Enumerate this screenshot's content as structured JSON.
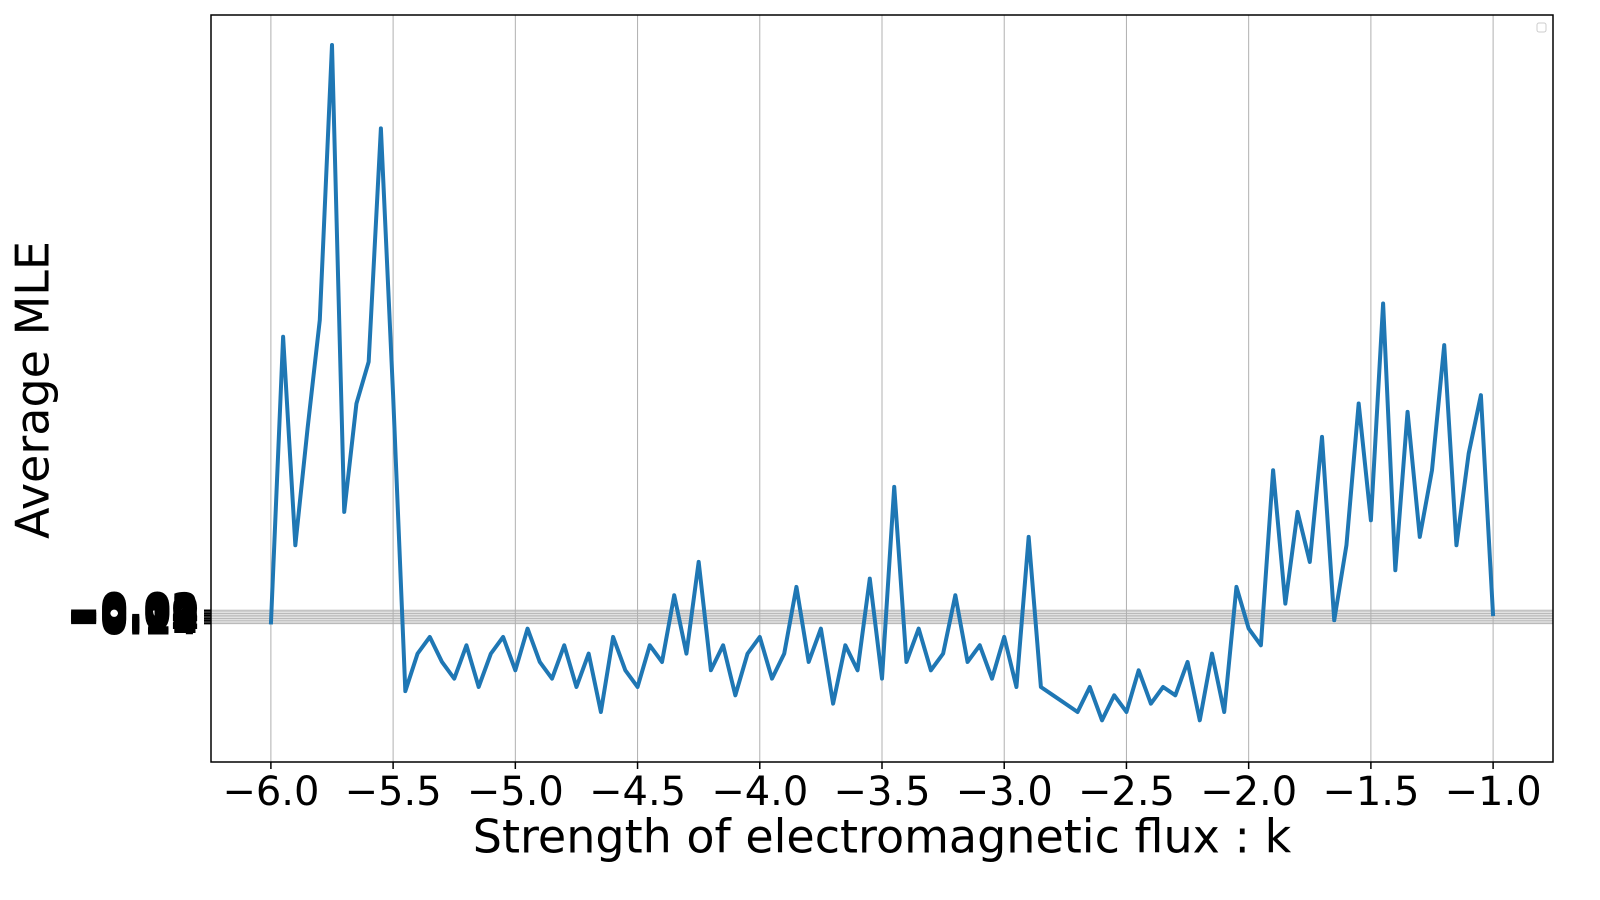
{
  "chart_data": {
    "type": "line",
    "xlabel": "Strength of electromagnetic flux : k",
    "ylabel": "Average MLE",
    "color": "#1f77b4",
    "grid": true,
    "xlim": [
      -6.245,
      -0.755
    ],
    "ylim": [
      -1.8,
      7.16
    ],
    "xticks": [
      {
        "value": -6.0,
        "label": "−6.0"
      },
      {
        "value": -5.5,
        "label": "−5.5"
      },
      {
        "value": -5.0,
        "label": "−5.0"
      },
      {
        "value": -4.5,
        "label": "−4.5"
      },
      {
        "value": -4.0,
        "label": "−4.0"
      },
      {
        "value": -3.5,
        "label": "−3.5"
      },
      {
        "value": -3.0,
        "label": "−3.0"
      },
      {
        "value": -2.5,
        "label": "−2.5"
      },
      {
        "value": -2.0,
        "label": "−2.0"
      },
      {
        "value": -1.5,
        "label": "−1.5"
      },
      {
        "value": -1.0,
        "label": "−1.0"
      }
    ],
    "yticks": [
      {
        "value": -0.14,
        "label": "−0.14"
      },
      {
        "value": -0.12,
        "label": "−0.12"
      },
      {
        "value": -0.1,
        "label": "−0.10"
      },
      {
        "value": -0.08,
        "label": "−0.08"
      },
      {
        "value": -0.06,
        "label": "−0.06"
      },
      {
        "value": -0.04,
        "label": "−0.04"
      },
      {
        "value": -0.02,
        "label": "−0.02"
      },
      {
        "value": 0,
        "label": "0.00"
      },
      {
        "value": 0.02,
        "label": "0.02"
      }
    ],
    "x": [
      -6.0,
      -5.95,
      -5.9,
      -5.85,
      -5.8,
      -5.75,
      -5.7,
      -5.65,
      -5.6,
      -5.55,
      -5.5,
      -5.45,
      -5.4,
      -5.35,
      -5.3,
      -5.25,
      -5.2,
      -5.15,
      -5.1,
      -5.05,
      -5.0,
      -4.95,
      -4.9,
      -4.85,
      -4.8,
      -4.75,
      -4.7,
      -4.65,
      -4.6,
      -4.55,
      -4.5,
      -4.45,
      -4.4,
      -4.35,
      -4.3,
      -4.25,
      -4.2,
      -4.15,
      -4.1,
      -4.05,
      -4.0,
      -3.95,
      -3.9,
      -3.85,
      -3.8,
      -3.75,
      -3.7,
      -3.65,
      -3.6,
      -3.55,
      -3.5,
      -3.45,
      -3.4,
      -3.35,
      -3.3,
      -3.25,
      -3.2,
      -3.15,
      -3.1,
      -3.05,
      -3.0,
      -2.95,
      -2.9,
      -2.85,
      -2.8,
      -2.75,
      -2.7,
      -2.65,
      -2.6,
      -2.55,
      -2.5,
      -2.45,
      -2.4,
      -2.35,
      -2.3,
      -2.25,
      -2.2,
      -2.15,
      -2.1,
      -2.05,
      -2.0,
      -1.95,
      -1.9,
      -1.85,
      -1.8,
      -1.75,
      -1.7,
      -1.65,
      -1.6,
      -1.55,
      -1.5,
      -1.45,
      -1.4,
      -1.35,
      -1.3,
      -1.25,
      -1.2,
      -1.15,
      -1.1,
      -1.05,
      -1.0
    ],
    "values": [
      -0.15,
      3.3,
      0.8,
      2.2,
      3.5,
      6.8,
      1.2,
      2.5,
      3.0,
      5.8,
      2.6,
      -0.95,
      -0.5,
      -0.3,
      -0.6,
      -0.8,
      -0.4,
      -0.9,
      -0.5,
      -0.3,
      -0.7,
      -0.2,
      -0.6,
      -0.8,
      -0.4,
      -0.9,
      -0.5,
      -1.2,
      -0.3,
      -0.7,
      -0.9,
      -0.4,
      -0.6,
      0.2,
      -0.5,
      0.6,
      -0.7,
      -0.4,
      -1.0,
      -0.5,
      -0.3,
      -0.8,
      -0.5,
      0.3,
      -0.6,
      -0.2,
      -1.1,
      -0.4,
      -0.7,
      0.4,
      -0.8,
      1.5,
      -0.6,
      -0.2,
      -0.7,
      -0.5,
      0.2,
      -0.6,
      -0.4,
      -0.8,
      -0.3,
      -0.9,
      0.9,
      -0.9,
      -1.0,
      -1.1,
      -1.2,
      -0.9,
      -1.3,
      -1.0,
      -1.2,
      -0.7,
      -1.1,
      -0.9,
      -1.0,
      -0.6,
      -1.3,
      -0.5,
      -1.2,
      0.3,
      -0.2,
      -0.4,
      1.7,
      0.1,
      1.2,
      0.6,
      2.1,
      -0.1,
      0.8,
      2.5,
      1.1,
      3.7,
      0.5,
      2.4,
      0.9,
      1.7,
      3.2,
      0.8,
      1.9,
      2.6,
      -0.05
    ]
  }
}
